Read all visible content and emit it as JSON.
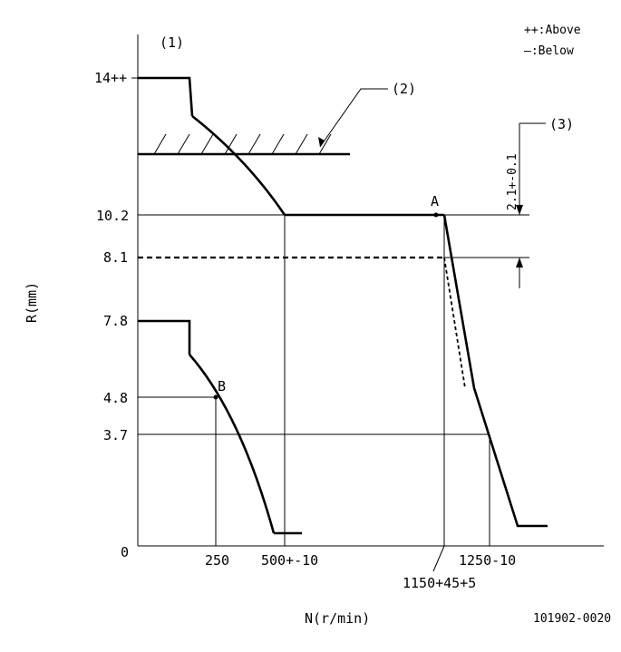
{
  "legend": {
    "above": "++:Above",
    "below": "—:Below"
  },
  "callouts": {
    "c1": "(1)",
    "c2": "(2)",
    "c3": "(3)"
  },
  "y_ticks": {
    "r14": "14++",
    "r10_2": "10.2",
    "r8_1": "8.1",
    "r7_8": "7.8",
    "r4_8": "4.8",
    "r3_7": "3.7",
    "origin": "0"
  },
  "x_ticks": {
    "n250": "250",
    "n500": "500+-10",
    "n1150": "1150+45+5",
    "n1250": "1250-10"
  },
  "points": {
    "a": "A",
    "b": "B"
  },
  "dimension_text": "2.1+-0.1",
  "axis_labels": {
    "y": "R(mm)",
    "x": "N(r/min)"
  },
  "figure_id": "101902-0020"
}
